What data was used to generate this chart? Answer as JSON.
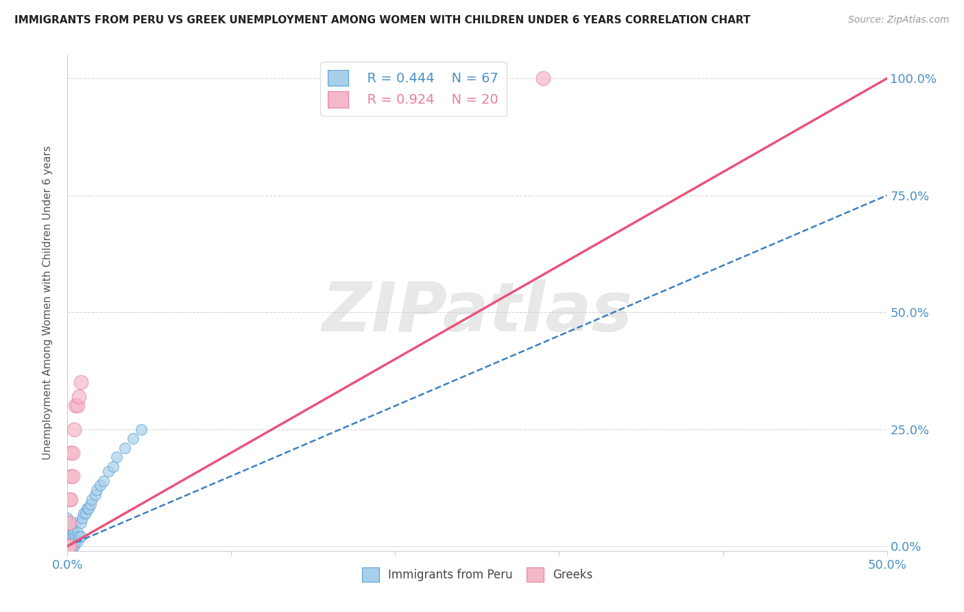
{
  "title": "IMMIGRANTS FROM PERU VS GREEK UNEMPLOYMENT AMONG WOMEN WITH CHILDREN UNDER 6 YEARS CORRELATION CHART",
  "source": "Source: ZipAtlas.com",
  "xlim": [
    0.0,
    0.5
  ],
  "ylim": [
    -0.01,
    1.05
  ],
  "ylabel": "Unemployment Among Women with Children Under 6 years",
  "legend_r1": "R = 0.444",
  "legend_n1": "N = 67",
  "legend_r2": "R = 0.924",
  "legend_n2": "N = 20",
  "watermark": "ZIPatlas",
  "peru_color": "#a8d0eb",
  "peru_edge": "#5b9fd4",
  "greek_color": "#f5b8c8",
  "greek_edge": "#e87da0",
  "blue_line_color": "#3a7fc1",
  "pink_line_color": "#e8547a",
  "tick_color": "#4a90c4",
  "ylabel_color": "#555555",
  "peru_x": [
    0.0,
    0.0,
    0.0,
    0.0,
    0.0,
    0.0,
    0.0,
    0.0,
    0.0,
    0.0,
    0.0,
    0.0,
    0.0,
    0.0,
    0.0,
    0.0,
    0.0,
    0.0,
    0.0,
    0.0,
    0.001,
    0.001,
    0.001,
    0.001,
    0.001,
    0.001,
    0.001,
    0.001,
    0.002,
    0.002,
    0.002,
    0.002,
    0.002,
    0.002,
    0.003,
    0.003,
    0.003,
    0.003,
    0.003,
    0.004,
    0.004,
    0.004,
    0.005,
    0.005,
    0.005,
    0.006,
    0.006,
    0.007,
    0.008,
    0.008,
    0.009,
    0.01,
    0.011,
    0.012,
    0.013,
    0.014,
    0.015,
    0.017,
    0.018,
    0.02,
    0.022,
    0.025,
    0.028,
    0.03,
    0.035,
    0.04,
    0.045
  ],
  "peru_y": [
    0.0,
    0.0,
    0.0,
    0.0,
    0.0,
    0.0,
    0.0,
    0.0,
    0.0,
    0.0,
    0.0,
    0.0,
    0.0,
    0.01,
    0.01,
    0.02,
    0.02,
    0.03,
    0.04,
    0.06,
    0.0,
    0.0,
    0.0,
    0.01,
    0.01,
    0.02,
    0.03,
    0.05,
    0.0,
    0.0,
    0.01,
    0.01,
    0.02,
    0.04,
    0.0,
    0.01,
    0.01,
    0.02,
    0.04,
    0.0,
    0.01,
    0.03,
    0.01,
    0.02,
    0.05,
    0.01,
    0.03,
    0.02,
    0.02,
    0.05,
    0.06,
    0.07,
    0.07,
    0.08,
    0.08,
    0.09,
    0.1,
    0.11,
    0.12,
    0.13,
    0.14,
    0.16,
    0.17,
    0.19,
    0.21,
    0.23,
    0.25
  ],
  "greek_x": [
    0.0,
    0.0,
    0.0,
    0.0,
    0.0,
    0.001,
    0.001,
    0.001,
    0.001,
    0.002,
    0.002,
    0.002,
    0.003,
    0.003,
    0.004,
    0.005,
    0.006,
    0.007,
    0.008,
    0.29
  ],
  "greek_y": [
    0.0,
    0.0,
    0.0,
    0.0,
    0.05,
    0.0,
    0.0,
    0.05,
    0.1,
    0.1,
    0.15,
    0.2,
    0.15,
    0.2,
    0.25,
    0.3,
    0.3,
    0.32,
    0.35,
    1.0
  ],
  "blue_line_x": [
    0.0,
    0.5
  ],
  "blue_line_y": [
    0.0,
    0.75
  ],
  "pink_line_x": [
    0.0,
    0.5
  ],
  "pink_line_y": [
    0.0,
    1.0
  ]
}
